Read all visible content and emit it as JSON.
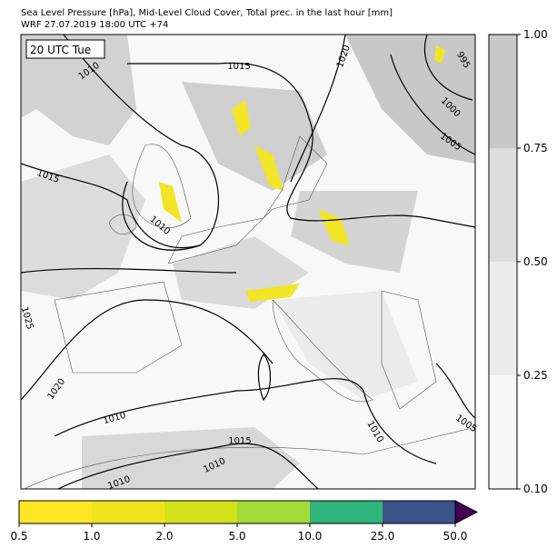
{
  "header": {
    "title": "Sea Level Pressure [hPa], Mid-Level Cloud Cover, Total prec. in the last hour [mm]",
    "subtitle": "WRF 27.07.2019 18:00 UTC +74"
  },
  "map": {
    "time_label": "20 UTC Tue",
    "contour_labels": [
      "1010",
      "1015",
      "1020",
      "995",
      "1000",
      "1005",
      "1015",
      "1010",
      "1025",
      "1020",
      "1010",
      "1015",
      "1010",
      "1010",
      "1010",
      "1005"
    ]
  },
  "cloud_colorbar": {
    "ticks": [
      {
        "value": 0.1,
        "label": "0.10"
      },
      {
        "value": 0.25,
        "label": "0.25"
      },
      {
        "value": 0.5,
        "label": "0.50"
      },
      {
        "value": 0.75,
        "label": "0.75"
      },
      {
        "value": 1,
        "label": "1.00"
      }
    ],
    "colors": [
      "#f7f7f7",
      "#ebebeb",
      "#dddddd",
      "#c8c8c8"
    ]
  },
  "precip_colorbar": {
    "ticks": [
      0.5,
      {
        "value": 1,
        "label": "1.0"
      },
      {
        "value": 2,
        "label": "2.0"
      },
      {
        "value": 5,
        "label": "5.0"
      },
      {
        "value": 10,
        "label": "10.0"
      },
      {
        "value": 25,
        "label": "25.0"
      },
      {
        "value": 50,
        "label": "50.0"
      }
    ],
    "colors": [
      "#fde725",
      "#efe51c",
      "#d4e21a",
      "#a2da37",
      "#2fb47c",
      "#3b528b"
    ],
    "extend_color": "#440154"
  }
}
